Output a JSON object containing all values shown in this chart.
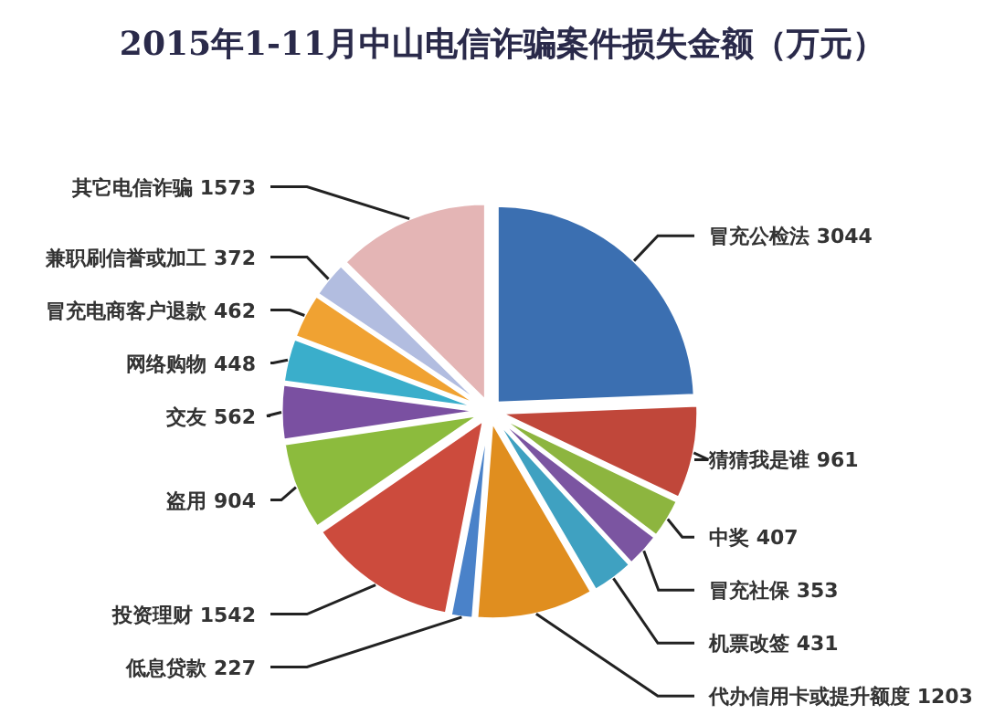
{
  "chart_data": {
    "type": "pie",
    "title": "2015年1-11月中山电信诈骗案件损失金额（万元）",
    "categories": [
      "冒充公检法 3044",
      "猜猜我是谁 961",
      "中奖 407",
      "冒充社保 353",
      "机票改签 431",
      "代办信用卡或提升额度 1203",
      "低息贷款 227",
      "投资理财 1542",
      "盗用 904",
      "交友 562",
      "网络购物 448",
      "冒充电商客户退款 462",
      "兼职刷信誉或加工 372",
      "其它电信诈骗 1573"
    ],
    "values": [
      3044,
      961,
      407,
      353,
      431,
      1203,
      227,
      1542,
      904,
      562,
      448,
      462,
      372,
      1573
    ],
    "colors": [
      "#3b6fb1",
      "#c0473a",
      "#8db53f",
      "#7b55a1",
      "#3fa1c1",
      "#e08e1f",
      "#4a82c9",
      "#cc4b3d",
      "#8cbb3d",
      "#7a50a1",
      "#3aaecb",
      "#f0a232",
      "#b2bde0",
      "#e4b5b5"
    ]
  }
}
